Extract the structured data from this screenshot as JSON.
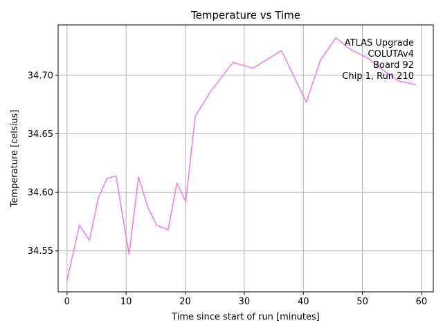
{
  "chart_data": {
    "type": "line",
    "title": "Temperature vs Time",
    "xlabel": "Time since start of run [minutes]",
    "ylabel": "Temperature [celsius]",
    "xlim": [
      -1.5,
      62
    ],
    "ylim": [
      34.515,
      34.743
    ],
    "grid": true,
    "x_ticks": [
      0,
      10,
      20,
      30,
      40,
      50,
      60
    ],
    "y_ticks": [
      34.55,
      34.6,
      34.65,
      34.7
    ],
    "x_tick_labels": [
      "0",
      "10",
      "20",
      "30",
      "40",
      "50",
      "60"
    ],
    "y_tick_labels": [
      "34.55",
      "34.60",
      "34.65",
      "34.70"
    ],
    "annotation_lines": [
      "ATLAS Upgrade",
      "COLUTAv4",
      "Board 92",
      "Chip 1, Run 210"
    ],
    "annotation_position": "top-right",
    "series": [
      {
        "name": "temperature",
        "color": "#ee82ee",
        "x": [
          0.0,
          2.1,
          3.8,
          5.3,
          6.8,
          8.3,
          10.5,
          12.1,
          13.7,
          15.2,
          17.1,
          18.6,
          20.1,
          21.7,
          24.3,
          28.1,
          31.5,
          36.3,
          40.5,
          42.9,
          45.5,
          48.0,
          50.8,
          53.3,
          56.2,
          59.0
        ],
        "y": [
          34.525,
          34.572,
          34.559,
          34.595,
          34.612,
          34.614,
          34.547,
          34.613,
          34.587,
          34.572,
          34.568,
          34.608,
          34.592,
          34.665,
          34.686,
          34.711,
          34.706,
          34.721,
          34.677,
          34.713,
          34.732,
          34.722,
          34.715,
          34.705,
          34.695,
          34.692
        ]
      }
    ]
  }
}
